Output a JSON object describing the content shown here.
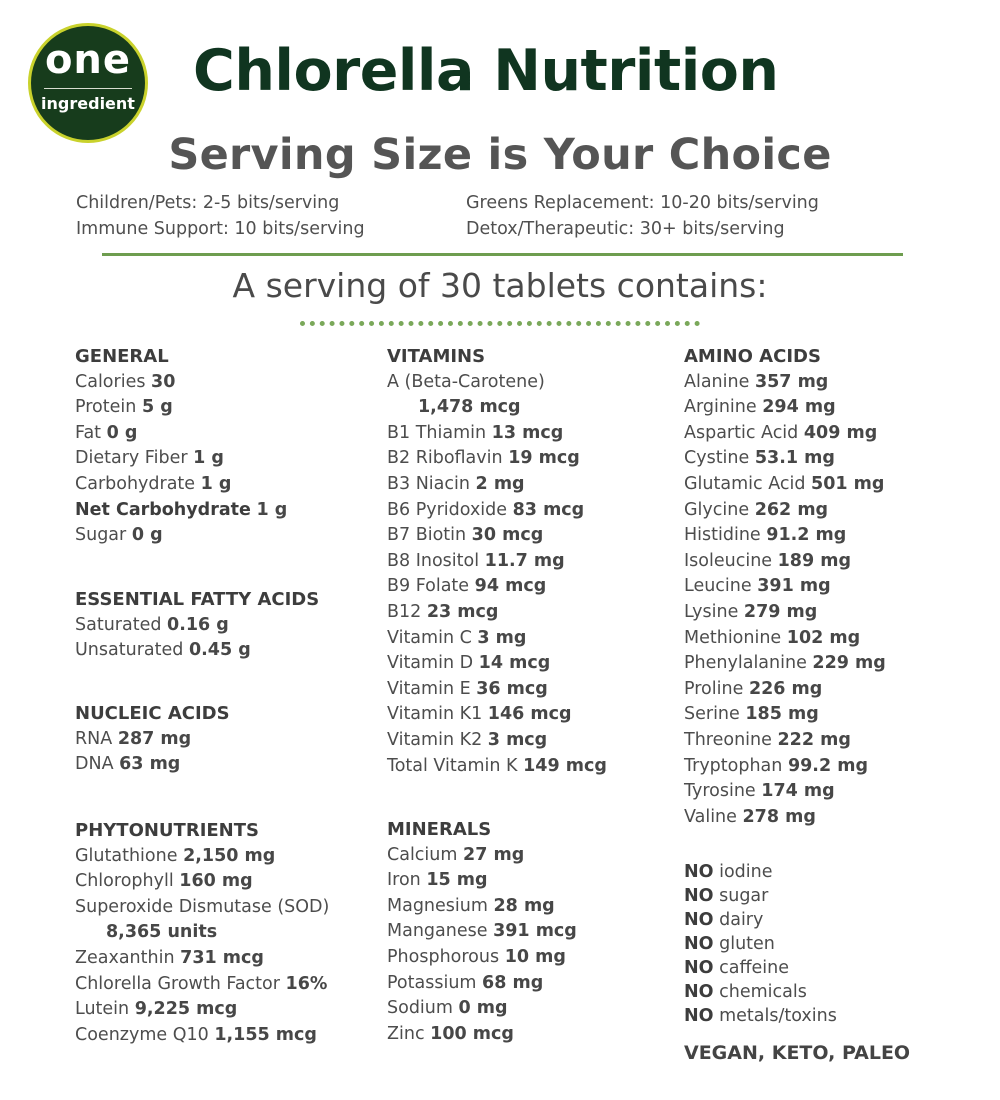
{
  "logo": {
    "top": "one",
    "bottom": "ingredient",
    "fill": "#173c1c",
    "ring": "#c9d22c"
  },
  "header": {
    "title": "Chlorella Nutrition",
    "subtitle": "Serving Size is Your Choice",
    "guides_left": [
      "Children/Pets: 2-5 bits/serving",
      "Immune Support: 10 bits/serving"
    ],
    "guides_right": [
      "Greens Replacement: 10-20 bits/serving",
      "Detox/Therapeutic: 30+ bits/serving"
    ],
    "serving": "A serving of 30 tablets contains:"
  },
  "general": {
    "title": "GENERAL",
    "items": [
      {
        "name": "Calories",
        "value": "30"
      },
      {
        "name": "Protein",
        "value": "5 g"
      },
      {
        "name": "Fat",
        "value": "0 g"
      },
      {
        "name": "Dietary Fiber",
        "value": "1 g"
      },
      {
        "name": "Carbohydrate",
        "value": "1 g"
      },
      {
        "name": "Net Carbohydrate",
        "value": "1 g"
      },
      {
        "name": "Sugar",
        "value": "0 g"
      }
    ]
  },
  "fatty": {
    "title": "ESSENTIAL FATTY ACIDS",
    "items": [
      {
        "name": "Saturated",
        "value": "0.16 g"
      },
      {
        "name": "Unsaturated",
        "value": "0.45 g"
      }
    ]
  },
  "nucleic": {
    "title": "NUCLEIC ACIDS",
    "items": [
      {
        "name": "RNA",
        "value": "287 mg"
      },
      {
        "name": "DNA",
        "value": "63 mg"
      }
    ]
  },
  "phyto": {
    "title": "PHYTONUTRIENTS",
    "items": [
      {
        "name": "Glutathione",
        "value": "2,150 mg"
      },
      {
        "name": "Chlorophyll",
        "value": "160 mg"
      },
      {
        "name": "Superoxide Dismutase (SOD)",
        "value": "8,365 units"
      },
      {
        "name": "Zeaxanthin",
        "value": "731 mcg"
      },
      {
        "name": "Chlorella Growth Factor",
        "value": "16%"
      },
      {
        "name": "Lutein",
        "value": "9,225 mcg"
      },
      {
        "name": "Coenzyme Q10",
        "value": "1,155 mcg"
      }
    ]
  },
  "vitamins": {
    "title": "VITAMINS",
    "items": [
      {
        "name": "A (Beta-Carotene)",
        "value": "1,478 mcg"
      },
      {
        "name": "B1 Thiamin",
        "value": "13 mcg"
      },
      {
        "name": "B2 Riboflavin",
        "value": "19 mcg"
      },
      {
        "name": "B3 Niacin",
        "value": "2 mg"
      },
      {
        "name": "B6 Pyridoxide",
        "value": "83 mcg"
      },
      {
        "name": "B7 Biotin",
        "value": "30 mcg"
      },
      {
        "name": "B8 Inositol",
        "value": "11.7 mg"
      },
      {
        "name": "B9 Folate",
        "value": "94 mcg"
      },
      {
        "name": "B12",
        "value": "23 mcg"
      },
      {
        "name": "Vitamin C",
        "value": "3 mg"
      },
      {
        "name": "Vitamin D",
        "value": "14 mcg"
      },
      {
        "name": "Vitamin E",
        "value": "36 mcg"
      },
      {
        "name": "Vitamin K1",
        "value": "146 mcg"
      },
      {
        "name": "Vitamin K2",
        "value": "3 mcg"
      },
      {
        "name": "Total Vitamin K",
        "value": "149 mcg"
      }
    ]
  },
  "minerals": {
    "title": "MINERALS",
    "items": [
      {
        "name": "Calcium",
        "value": "27 mg"
      },
      {
        "name": "Iron",
        "value": "15 mg"
      },
      {
        "name": "Magnesium",
        "value": "28 mg"
      },
      {
        "name": "Manganese",
        "value": "391 mcg"
      },
      {
        "name": "Phosphorous",
        "value": "10 mg"
      },
      {
        "name": "Potassium",
        "value": "68 mg"
      },
      {
        "name": "Sodium",
        "value": "0 mg"
      },
      {
        "name": "Zinc",
        "value": "100 mcg"
      }
    ]
  },
  "amino": {
    "title": "AMINO ACIDS",
    "items": [
      {
        "name": "Alanine",
        "value": "357 mg"
      },
      {
        "name": "Arginine",
        "value": "294 mg"
      },
      {
        "name": "Aspartic Acid",
        "value": "409 mg"
      },
      {
        "name": "Cystine",
        "value": "53.1 mg"
      },
      {
        "name": "Glutamic Acid",
        "value": "501 mg"
      },
      {
        "name": "Glycine",
        "value": "262 mg"
      },
      {
        "name": "Histidine",
        "value": "91.2 mg"
      },
      {
        "name": "Isoleucine",
        "value": "189 mg"
      },
      {
        "name": "Leucine",
        "value": "391 mg"
      },
      {
        "name": "Lysine",
        "value": "279 mg"
      },
      {
        "name": "Methionine",
        "value": "102 mg"
      },
      {
        "name": "Phenylalanine",
        "value": "229 mg"
      },
      {
        "name": "Proline",
        "value": "226 mg"
      },
      {
        "name": "Serine",
        "value": "185 mg"
      },
      {
        "name": "Threonine",
        "value": "222 mg"
      },
      {
        "name": "Tryptophan",
        "value": "99.2 mg"
      },
      {
        "name": "Tyrosine",
        "value": "174 mg"
      },
      {
        "name": "Valine",
        "value": "278 mg"
      }
    ]
  },
  "free_from": {
    "prefix": "NO",
    "items": [
      "iodine",
      "sugar",
      "dairy",
      "gluten",
      "caffeine",
      "chemicals",
      "metals/toxins"
    ]
  },
  "diet": "VEGAN, KETO, PALEO"
}
